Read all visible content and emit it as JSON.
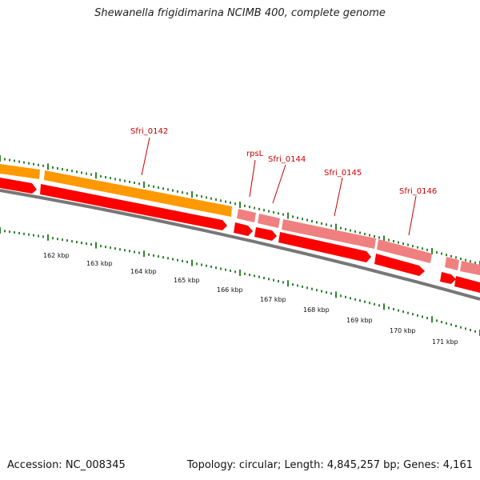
{
  "header": {
    "title": "Shewanella frigidimarina NCIMB 400, complete genome"
  },
  "footer": {
    "accession": "Accession: NC_008345",
    "stats": "Topology: circular; Length: 4,845,257 bp; Genes: 4,161"
  },
  "colors": {
    "gene_upper_plain": "#ff9900",
    "gene_upper_rna": "#f08080",
    "gene_lower": "#ff0000",
    "backbone": "#777777",
    "tick": "#006600",
    "label": "#cc0000"
  },
  "ticks": [
    "162 kbp",
    "163 kbp",
    "164 kbp",
    "165 kbp",
    "166 kbp",
    "167 kbp",
    "168 kbp",
    "169 kbp",
    "170 kbp",
    "171 kbp"
  ],
  "genes": [
    {
      "label": "Sfri_0142"
    },
    {
      "label": "rpsL"
    },
    {
      "label": "Sfri_0144"
    },
    {
      "label": "Sfri_0145"
    },
    {
      "label": "Sfri_0146"
    }
  ]
}
